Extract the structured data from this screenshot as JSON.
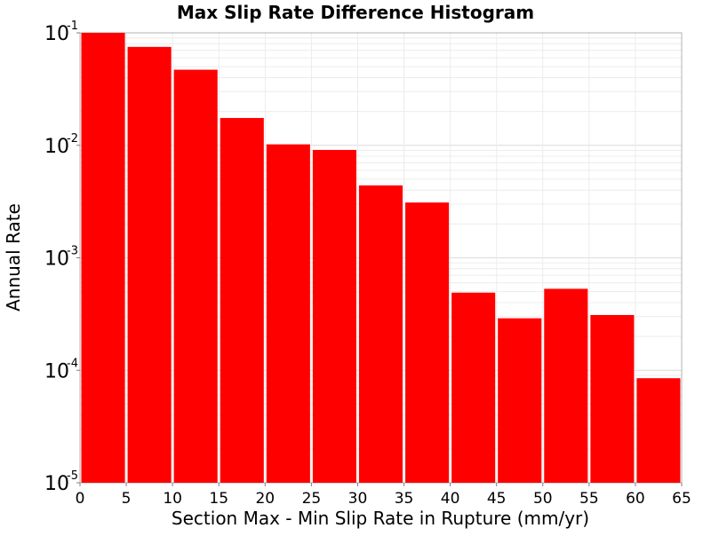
{
  "chart_data": {
    "type": "bar",
    "title": "Max Slip Rate Difference Histogram",
    "xlabel": "Section Max - Min Slip Rate in Rupture (mm/yr)",
    "ylabel": "Annual Rate",
    "y_scale": "log",
    "ylim": [
      1e-05,
      0.1
    ],
    "xlim": [
      0,
      65
    ],
    "x_ticks": [
      "0",
      "5",
      "10",
      "15",
      "20",
      "25",
      "30",
      "35",
      "40",
      "45",
      "50",
      "55",
      "60",
      "65"
    ],
    "y_ticks": [
      {
        "base": "10",
        "exp": "-5",
        "value": 1e-05
      },
      {
        "base": "10",
        "exp": "-4",
        "value": 0.0001
      },
      {
        "base": "10",
        "exp": "-3",
        "value": 0.001
      },
      {
        "base": "10",
        "exp": "-2",
        "value": 0.01
      },
      {
        "base": "10",
        "exp": "-1",
        "value": 0.1
      }
    ],
    "grid": true,
    "bar_color": "#ff0000",
    "bins": [
      {
        "x0": 0,
        "x1": 5,
        "value": 0.1
      },
      {
        "x0": 5,
        "x1": 10,
        "value": 0.075
      },
      {
        "x0": 10,
        "x1": 15,
        "value": 0.047
      },
      {
        "x0": 15,
        "x1": 20,
        "value": 0.0175
      },
      {
        "x0": 20,
        "x1": 25,
        "value": 0.0102
      },
      {
        "x0": 25,
        "x1": 30,
        "value": 0.0091
      },
      {
        "x0": 30,
        "x1": 35,
        "value": 0.0044
      },
      {
        "x0": 35,
        "x1": 40,
        "value": 0.0031
      },
      {
        "x0": 40,
        "x1": 45,
        "value": 0.00049
      },
      {
        "x0": 45,
        "x1": 50,
        "value": 0.00029
      },
      {
        "x0": 50,
        "x1": 55,
        "value": 0.00053
      },
      {
        "x0": 55,
        "x1": 60,
        "value": 0.00031
      },
      {
        "x0": 60,
        "x1": 65,
        "value": 8.5e-05
      }
    ]
  }
}
